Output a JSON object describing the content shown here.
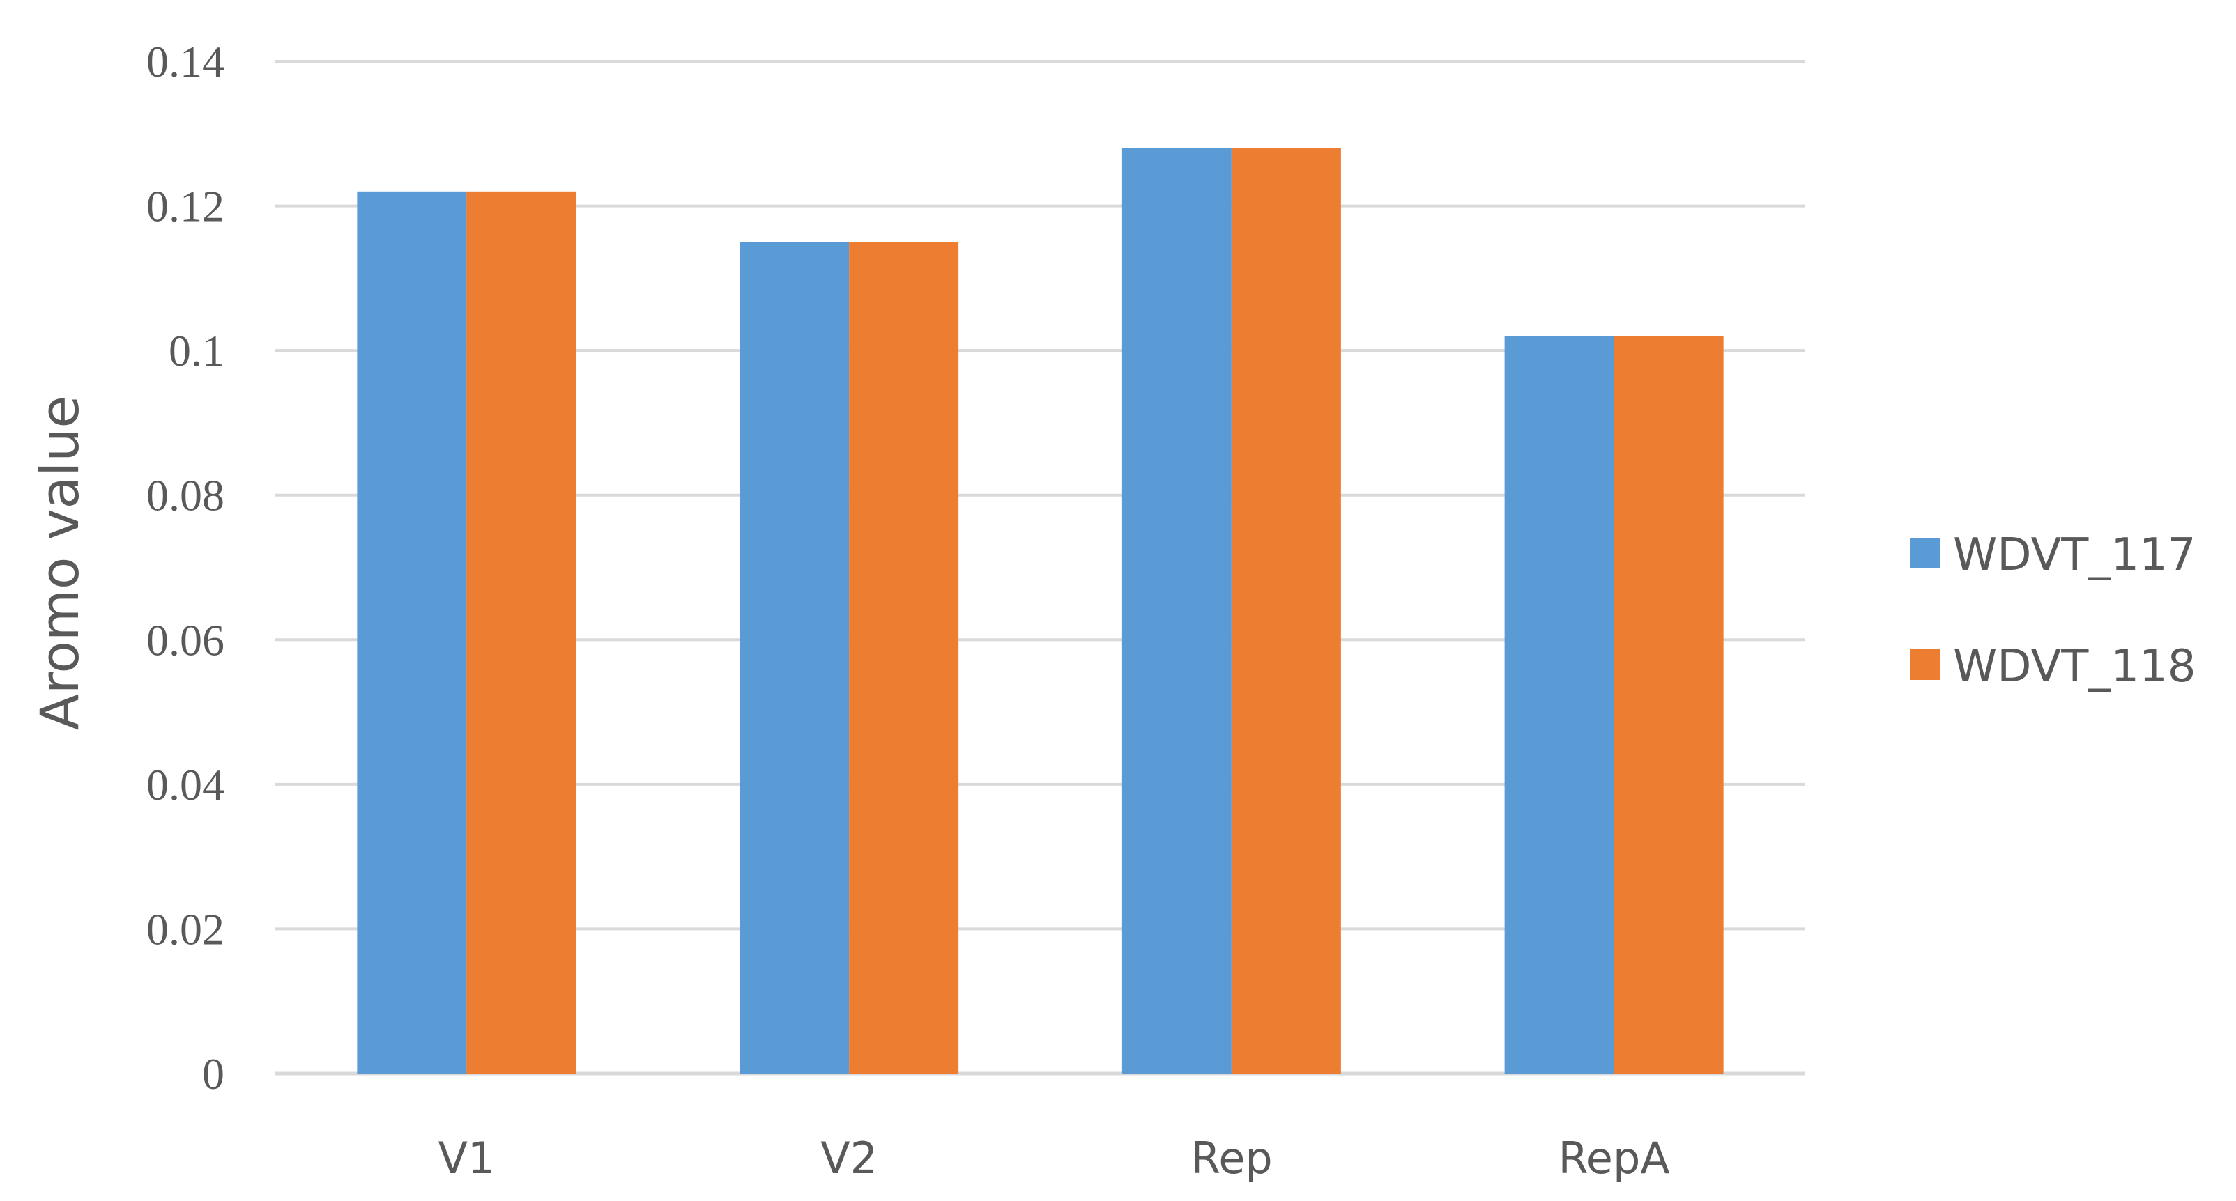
{
  "chart_data": {
    "type": "bar",
    "categories": [
      "V1",
      "V2",
      "Rep",
      "RepA"
    ],
    "series": [
      {
        "name": "WDVT_117",
        "color": "#5B9BD5",
        "values": [
          0.122,
          0.115,
          0.128,
          0.102
        ]
      },
      {
        "name": "WDVT_118",
        "color": "#ED7D31",
        "values": [
          0.122,
          0.115,
          0.128,
          0.102
        ]
      }
    ],
    "title": "",
    "xlabel": "",
    "ylabel": "Aromo value",
    "ylim": [
      0,
      0.14
    ],
    "yticks": [
      "0",
      "0.02",
      "0.04",
      "0.06",
      "0.08",
      "0.1",
      "0.12",
      "0.14"
    ],
    "grid": true,
    "gridline_color": "#D9D9D9",
    "legend_position": "right"
  }
}
